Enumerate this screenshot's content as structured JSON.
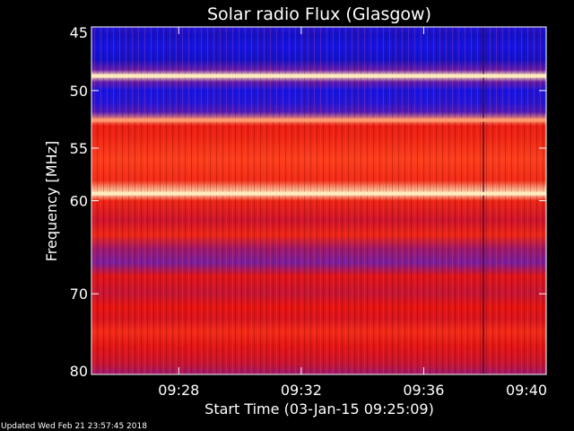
{
  "chart_data": {
    "type": "heatmap",
    "title": "Solar radio Flux (Glasgow)",
    "xlabel": "Start Time (03-Jan-15 09:25:09)",
    "ylabel": "Frequency [MHz]",
    "start_time": "09:25:09",
    "end_time": "09:40:00",
    "ylim": [
      45,
      80
    ],
    "y_scale": "log",
    "y_ticks": [
      45,
      50,
      55,
      60,
      70,
      80
    ],
    "x_ticks": [
      "09:28",
      "09:32",
      "09:36",
      "09:40"
    ],
    "intensity_profile_by_frequency": [
      {
        "mhz": 45.0,
        "level": 0.15
      },
      {
        "mhz": 45.6,
        "level": 0.1
      },
      {
        "mhz": 46.5,
        "level": 0.12
      },
      {
        "mhz": 47.5,
        "level": 0.1
      },
      {
        "mhz": 48.3,
        "level": 0.3
      },
      {
        "mhz": 48.8,
        "level": 1.0
      },
      {
        "mhz": 49.3,
        "level": 0.3
      },
      {
        "mhz": 50.0,
        "level": 0.12
      },
      {
        "mhz": 51.0,
        "level": 0.15
      },
      {
        "mhz": 51.8,
        "level": 0.25
      },
      {
        "mhz": 52.5,
        "level": 0.95
      },
      {
        "mhz": 53.0,
        "level": 0.78
      },
      {
        "mhz": 54.0,
        "level": 0.8
      },
      {
        "mhz": 56.0,
        "level": 0.88
      },
      {
        "mhz": 58.0,
        "level": 0.82
      },
      {
        "mhz": 59.3,
        "level": 1.0
      },
      {
        "mhz": 60.0,
        "level": 0.8
      },
      {
        "mhz": 62.0,
        "level": 0.62
      },
      {
        "mhz": 63.5,
        "level": 0.8
      },
      {
        "mhz": 65.0,
        "level": 0.45
      },
      {
        "mhz": 66.5,
        "level": 0.35
      },
      {
        "mhz": 68.0,
        "level": 0.72
      },
      {
        "mhz": 70.0,
        "level": 0.58
      },
      {
        "mhz": 71.5,
        "level": 0.75
      },
      {
        "mhz": 73.0,
        "level": 0.68
      },
      {
        "mhz": 74.5,
        "level": 0.82
      },
      {
        "mhz": 76.5,
        "level": 0.72
      },
      {
        "mhz": 78.5,
        "level": 0.6
      },
      {
        "mhz": 80.0,
        "level": 0.45
      }
    ],
    "colors": {
      "low": "#000060",
      "blue": "#1a1aee",
      "purple": "#7a1a9a",
      "red": "#e01010",
      "high": "#ffe8c0"
    }
  },
  "footer": {
    "updated": "Updated Wed Feb 21 23:57:45 2018"
  }
}
